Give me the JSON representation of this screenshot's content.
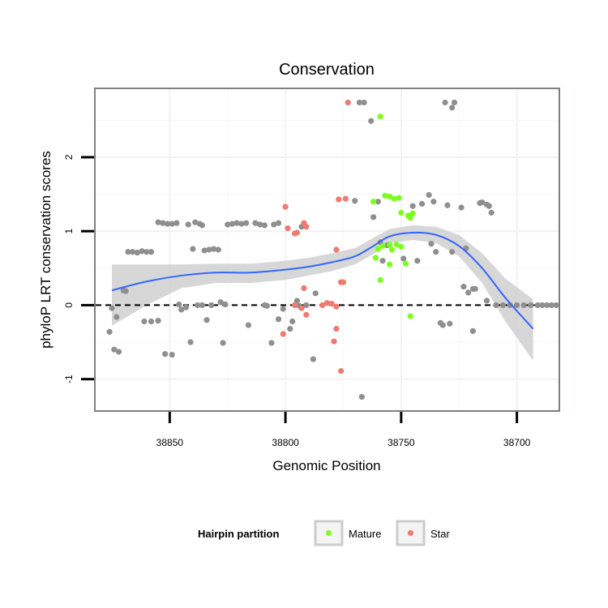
{
  "chart_data": {
    "type": "scatter",
    "title": "Conservation",
    "xlabel": "Genomic Position",
    "ylabel": "phyloP LRT conservation scores",
    "x_reversed": true,
    "xlim": [
      38882,
      38682
    ],
    "ylim": [
      -1.42,
      2.92
    ],
    "x_ticks": [
      38850,
      38800,
      38750,
      38700
    ],
    "y_ticks": [
      -1,
      0,
      1,
      2
    ],
    "reference_line": {
      "y": 0,
      "style": "dashed"
    },
    "colors": {
      "other": "#8f8f8f",
      "Mature": "#7cff1f",
      "Star": "#f07a70",
      "smooth": "#3366ff",
      "band": "#d0d0d0"
    },
    "legend": {
      "title": "Hairpin partition",
      "position": "bottom",
      "entries": [
        "Mature",
        "Star"
      ]
    },
    "smooth": {
      "x": [
        38875,
        38860,
        38845,
        38830,
        38815,
        38800,
        38790,
        38780,
        38770,
        38762,
        38755,
        38745,
        38735,
        38725,
        38715,
        38705,
        38693
      ],
      "y": [
        0.2,
        0.32,
        0.4,
        0.44,
        0.44,
        0.48,
        0.52,
        0.58,
        0.66,
        0.8,
        0.93,
        0.98,
        0.95,
        0.8,
        0.5,
        0.1,
        -0.32
      ],
      "lower": [
        -0.28,
        0.0,
        0.23,
        0.3,
        0.3,
        0.34,
        0.4,
        0.46,
        0.55,
        0.69,
        0.84,
        0.88,
        0.84,
        0.66,
        0.3,
        -0.22,
        -0.75
      ],
      "upper": [
        0.55,
        0.55,
        0.55,
        0.56,
        0.56,
        0.6,
        0.64,
        0.7,
        0.77,
        0.91,
        1.03,
        1.08,
        1.06,
        0.95,
        0.7,
        0.36,
        0.08
      ]
    },
    "series": [
      {
        "name": "other",
        "points": [
          [
            38876,
            -0.36
          ],
          [
            38875,
            -0.04
          ],
          [
            38874,
            -0.6
          ],
          [
            38873,
            -0.16
          ],
          [
            38872,
            -0.63
          ],
          [
            38870,
            0.2
          ],
          [
            38869,
            0.19
          ],
          [
            38868,
            0.72
          ],
          [
            38866,
            0.72
          ],
          [
            38864,
            0.71
          ],
          [
            38862,
            0.73
          ],
          [
            38860,
            0.72
          ],
          [
            38858,
            0.72
          ],
          [
            38861,
            -0.22
          ],
          [
            38858,
            -0.22
          ],
          [
            38855,
            -0.21
          ],
          [
            38855,
            1.12
          ],
          [
            38853,
            1.11
          ],
          [
            38851,
            1.1
          ],
          [
            38849,
            1.1
          ],
          [
            38847,
            1.11
          ],
          [
            38852,
            -0.66
          ],
          [
            38849,
            -0.67
          ],
          [
            38846,
            0.01
          ],
          [
            38845,
            -0.06
          ],
          [
            38843,
            -0.03
          ],
          [
            38841,
            -0.5
          ],
          [
            38842,
            1.09
          ],
          [
            38839,
            1.12
          ],
          [
            38837,
            1.1
          ],
          [
            38836,
            1.08
          ],
          [
            38840,
            0.76
          ],
          [
            38838,
            0.0
          ],
          [
            38836,
            0.0
          ],
          [
            38834,
            -0.2
          ],
          [
            38832,
            0.0
          ],
          [
            38835,
            0.74
          ],
          [
            38833,
            0.75
          ],
          [
            38831,
            0.76
          ],
          [
            38829,
            0.75
          ],
          [
            38828,
            0.04
          ],
          [
            38826,
            0.01
          ],
          [
            38827,
            -0.51
          ],
          [
            38825,
            1.09
          ],
          [
            38823,
            1.1
          ],
          [
            38821,
            1.11
          ],
          [
            38819,
            1.1
          ],
          [
            38817,
            1.11
          ],
          [
            38813,
            1.11
          ],
          [
            38811,
            1.09
          ],
          [
            38809,
            1.08
          ],
          [
            38805,
            1.09
          ],
          [
            38803,
            1.11
          ],
          [
            38816,
            -0.27
          ],
          [
            38809,
            0.0
          ],
          [
            38808,
            -0.01
          ],
          [
            38806,
            -0.51
          ],
          [
            38803,
            -0.19
          ],
          [
            38801,
            -0.05
          ],
          [
            38798,
            -0.32
          ],
          [
            38797,
            -0.22
          ],
          [
            38795,
            0.06
          ],
          [
            38794,
            -0.01
          ],
          [
            38793,
            1.06
          ],
          [
            38792,
            1.1
          ],
          [
            38791,
            0.0
          ],
          [
            38788,
            -0.73
          ],
          [
            38787,
            0.16
          ],
          [
            38770,
            1.41
          ],
          [
            38768,
            2.74
          ],
          [
            38766,
            2.74
          ],
          [
            38763,
            2.49
          ],
          [
            38762,
            1.19
          ],
          [
            38760,
            1.4
          ],
          [
            38759,
            0.85
          ],
          [
            38758,
            0.6
          ],
          [
            38756,
            0.81
          ],
          [
            38749,
            0.63
          ],
          [
            38745,
            1.34
          ],
          [
            38743,
            0.6
          ],
          [
            38741,
            1.37
          ],
          [
            38738,
            1.49
          ],
          [
            38737,
            0.83
          ],
          [
            38736,
            1.4
          ],
          [
            38735,
            0.72
          ],
          [
            38733,
            -0.24
          ],
          [
            38732,
            -0.27
          ],
          [
            38731,
            2.74
          ],
          [
            38730,
            1.35
          ],
          [
            38729,
            -0.25
          ],
          [
            38728,
            2.67
          ],
          [
            38727,
            2.74
          ],
          [
            38728,
            0.72
          ],
          [
            38724,
            1.32
          ],
          [
            38723,
            0.25
          ],
          [
            38722,
            0.77
          ],
          [
            38721,
            0.17
          ],
          [
            38719,
            0.22
          ],
          [
            38718,
            0.22
          ],
          [
            38719,
            -0.35
          ],
          [
            38716,
            1.38
          ],
          [
            38715,
            1.39
          ],
          [
            38713,
            1.36
          ],
          [
            38712,
            1.34
          ],
          [
            38711,
            1.25
          ],
          [
            38713,
            0.06
          ],
          [
            38709,
            0.0
          ],
          [
            38706,
            0.0
          ],
          [
            38703,
            0.0
          ],
          [
            38700,
            0.0
          ],
          [
            38697,
            0.0
          ],
          [
            38694,
            0.0
          ],
          [
            38691,
            0.0
          ],
          [
            38689,
            0.0
          ],
          [
            38687,
            0.0
          ],
          [
            38685,
            0.0
          ],
          [
            38683,
            0.0
          ],
          [
            38767,
            -1.24
          ]
        ]
      },
      {
        "name": "Mature",
        "points": [
          [
            38759,
            2.55
          ],
          [
            38757,
            1.48
          ],
          [
            38755,
            1.47
          ],
          [
            38753,
            1.44
          ],
          [
            38751,
            1.45
          ],
          [
            38750,
            1.25
          ],
          [
            38747,
            1.21
          ],
          [
            38745,
            1.24
          ],
          [
            38746,
            1.18
          ],
          [
            38762,
            1.4
          ],
          [
            38760,
            0.76
          ],
          [
            38758,
            0.8
          ],
          [
            38755,
            0.82
          ],
          [
            38754,
            0.75
          ],
          [
            38752,
            0.82
          ],
          [
            38750,
            0.79
          ],
          [
            38761,
            0.64
          ],
          [
            38755,
            0.55
          ],
          [
            38748,
            0.56
          ],
          [
            38759,
            0.34
          ],
          [
            38746,
            -0.15
          ]
        ]
      },
      {
        "name": "Star",
        "points": [
          [
            38773,
            2.74
          ],
          [
            38774,
            1.44
          ],
          [
            38777,
            1.43
          ],
          [
            38800,
            1.33
          ],
          [
            38799,
            1.04
          ],
          [
            38796,
            0.97
          ],
          [
            38792,
            1.11
          ],
          [
            38791,
            1.06
          ],
          [
            38795,
            0.98
          ],
          [
            38778,
            0.75
          ],
          [
            38776,
            0.31
          ],
          [
            38775,
            0.31
          ],
          [
            38792,
            0.23
          ],
          [
            38796,
            0.0
          ],
          [
            38793,
            -0.04
          ],
          [
            38791,
            -0.13
          ],
          [
            38784,
            0.0
          ],
          [
            38782,
            0.03
          ],
          [
            38780,
            0.02
          ],
          [
            38778,
            -0.02
          ],
          [
            38801,
            -0.39
          ],
          [
            38778,
            -0.32
          ],
          [
            38779,
            -0.49
          ],
          [
            38776,
            -0.89
          ]
        ]
      }
    ]
  }
}
